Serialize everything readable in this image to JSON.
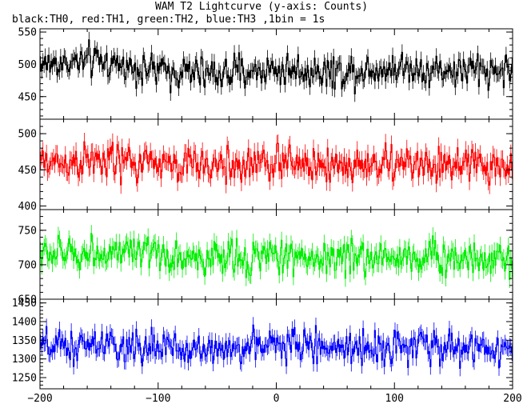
{
  "title": "WAM T2 Lightcurve (y-axis: Counts)",
  "subtitle": "black:TH0, red:TH1, green:TH2, blue:TH3 ,1bin = 1s",
  "chart_data": {
    "type": "line",
    "x_range": [
      -200,
      200
    ],
    "x_ticks": [
      "-200",
      "-100",
      "0",
      "100",
      "200"
    ],
    "bin_size_s": 1,
    "panels": [
      {
        "series": "TH0",
        "color": "#000000",
        "ylim": [
          415,
          555
        ],
        "y_ticks": [
          450,
          500,
          550
        ],
        "y_tick_labels": [
          "450",
          "500",
          "550"
        ],
        "mean": 492,
        "spread": 22,
        "x_sample": [
          -200,
          -150,
          -100,
          -50,
          0,
          50,
          100,
          150,
          200
        ],
        "y_sample": [
          500,
          505,
          490,
          485,
          492,
          488,
          495,
          490,
          492
        ]
      },
      {
        "series": "TH1",
        "color": "#ff0000",
        "ylim": [
          395,
          520
        ],
        "y_ticks": [
          400,
          450,
          500
        ],
        "y_tick_labels": [
          "400",
          "450",
          "500"
        ],
        "mean": 458,
        "spread": 22,
        "x_sample": [
          -200,
          -150,
          -100,
          -50,
          0,
          50,
          100,
          150,
          200
        ],
        "y_sample": [
          460,
          462,
          458,
          455,
          460,
          456,
          458,
          455,
          455
        ]
      },
      {
        "series": "TH2",
        "color": "#00ee00",
        "ylim": [
          650,
          780
        ],
        "y_ticks": [
          650,
          700,
          750
        ],
        "y_tick_labels": [
          "650",
          "700",
          "750"
        ],
        "mean": 712,
        "spread": 22,
        "x_sample": [
          -200,
          -150,
          -100,
          -50,
          0,
          50,
          100,
          150,
          200
        ],
        "y_sample": [
          715,
          718,
          712,
          708,
          713,
          710,
          712,
          710,
          712
        ]
      },
      {
        "series": "TH3",
        "color": "#0000ff",
        "ylim": [
          1220,
          1460
        ],
        "y_ticks": [
          1250,
          1300,
          1350,
          1400,
          1450
        ],
        "y_tick_labels": [
          "1250",
          "1300",
          "1350",
          "1400",
          "1450"
        ],
        "mean": 1332,
        "spread": 38,
        "x_sample": [
          -200,
          -150,
          -100,
          -50,
          0,
          50,
          100,
          150,
          200
        ],
        "y_sample": [
          1330,
          1335,
          1328,
          1325,
          1340,
          1330,
          1335,
          1330,
          1330
        ]
      }
    ]
  }
}
